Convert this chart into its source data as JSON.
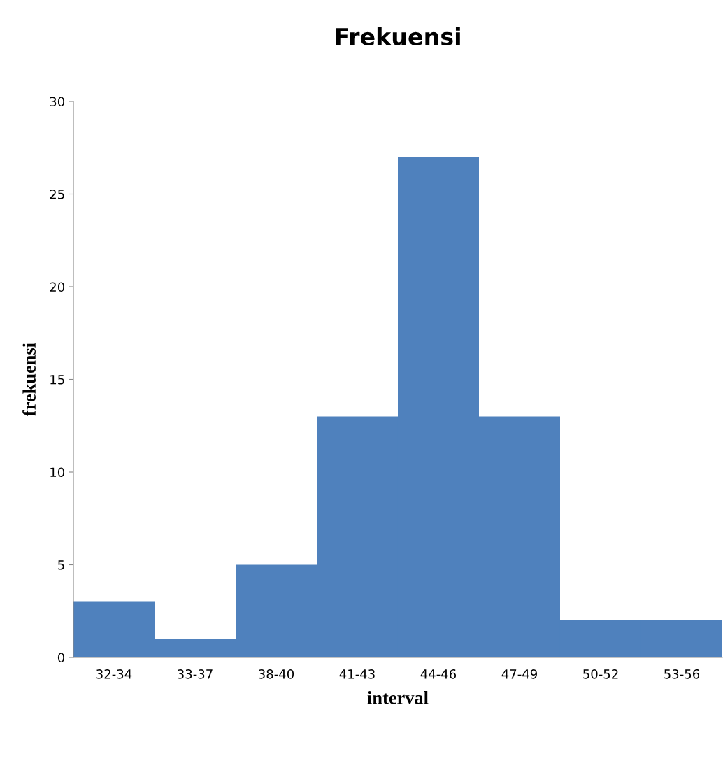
{
  "chart_data": {
    "type": "bar",
    "title": "Frekuensi",
    "xlabel": "interval",
    "ylabel": "frekuensi",
    "categories": [
      "32-34",
      "33-37",
      "38-40",
      "41-43",
      "44-46",
      "47-49",
      "50-52",
      "53-56"
    ],
    "values": [
      3,
      1,
      5,
      13,
      27,
      13,
      2,
      2
    ],
    "color": "#4f81bd",
    "ylim": [
      0,
      30
    ],
    "yticks": [
      0,
      5,
      10,
      15,
      20,
      25,
      30
    ],
    "grid": false,
    "legend": false
  }
}
